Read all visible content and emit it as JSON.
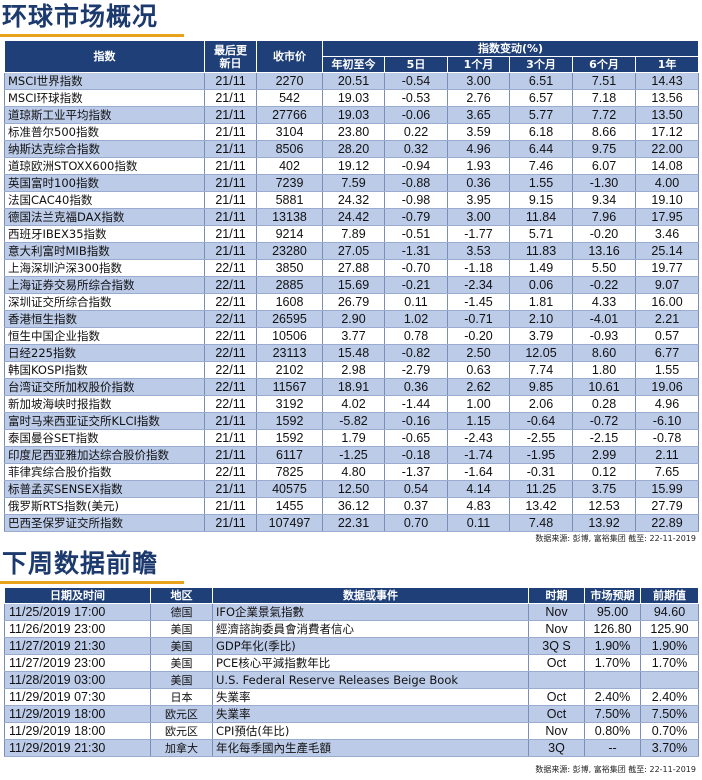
{
  "market_overview": {
    "title": "环球市场概况",
    "headers": {
      "index": "指数",
      "last_update": "最后更新日",
      "close": "收市价",
      "change_group": "指数变动(%)",
      "ytd": "年初至今",
      "d5": "5日",
      "m1": "1个月",
      "m3": "3个月",
      "m6": "6个月",
      "y1": "1年"
    },
    "rows": [
      {
        "name": "MSCI世界指数",
        "date": "21/11",
        "close": "2270",
        "ytd": "20.51",
        "d5": "-0.54",
        "m1": "3.00",
        "m3": "6.51",
        "m6": "7.51",
        "y1": "14.43"
      },
      {
        "name": "MSCI环球指数",
        "date": "21/11",
        "close": "542",
        "ytd": "19.03",
        "d5": "-0.53",
        "m1": "2.76",
        "m3": "6.57",
        "m6": "7.18",
        "y1": "13.56"
      },
      {
        "name": "道琼斯工业平均指数",
        "date": "21/11",
        "close": "27766",
        "ytd": "19.03",
        "d5": "-0.06",
        "m1": "3.65",
        "m3": "5.77",
        "m6": "7.72",
        "y1": "13.50"
      },
      {
        "name": "标准普尔500指数",
        "date": "21/11",
        "close": "3104",
        "ytd": "23.80",
        "d5": "0.22",
        "m1": "3.59",
        "m3": "6.18",
        "m6": "8.66",
        "y1": "17.12"
      },
      {
        "name": "纳斯达克综合指数",
        "date": "21/11",
        "close": "8506",
        "ytd": "28.20",
        "d5": "0.32",
        "m1": "4.96",
        "m3": "6.44",
        "m6": "9.75",
        "y1": "22.00"
      },
      {
        "name": "道琼欧洲STOXX600指数",
        "date": "21/11",
        "close": "402",
        "ytd": "19.12",
        "d5": "-0.94",
        "m1": "1.93",
        "m3": "7.46",
        "m6": "6.07",
        "y1": "14.08"
      },
      {
        "name": "英国富时100指数",
        "date": "21/11",
        "close": "7239",
        "ytd": "7.59",
        "d5": "-0.88",
        "m1": "0.36",
        "m3": "1.55",
        "m6": "-1.30",
        "y1": "4.00"
      },
      {
        "name": "法国CAC40指数",
        "date": "21/11",
        "close": "5881",
        "ytd": "24.32",
        "d5": "-0.98",
        "m1": "3.95",
        "m3": "9.15",
        "m6": "9.34",
        "y1": "19.10"
      },
      {
        "name": "德国法兰克福DAX指数",
        "date": "21/11",
        "close": "13138",
        "ytd": "24.42",
        "d5": "-0.79",
        "m1": "3.00",
        "m3": "11.84",
        "m6": "7.96",
        "y1": "17.95"
      },
      {
        "name": "西班牙IBEX35指数",
        "date": "21/11",
        "close": "9214",
        "ytd": "7.89",
        "d5": "-0.51",
        "m1": "-1.77",
        "m3": "5.71",
        "m6": "-0.20",
        "y1": "3.46"
      },
      {
        "name": "意大利富时MIB指数",
        "date": "21/11",
        "close": "23280",
        "ytd": "27.05",
        "d5": "-1.31",
        "m1": "3.53",
        "m3": "11.83",
        "m6": "13.16",
        "y1": "25.14"
      },
      {
        "name": "上海深圳沪深300指数",
        "date": "22/11",
        "close": "3850",
        "ytd": "27.88",
        "d5": "-0.70",
        "m1": "-1.18",
        "m3": "1.49",
        "m6": "5.50",
        "y1": "19.77"
      },
      {
        "name": "上海证券交易所综合指数",
        "date": "22/11",
        "close": "2885",
        "ytd": "15.69",
        "d5": "-0.21",
        "m1": "-2.34",
        "m3": "0.06",
        "m6": "-0.22",
        "y1": "9.07"
      },
      {
        "name": "深圳证交所综合指数",
        "date": "22/11",
        "close": "1608",
        "ytd": "26.79",
        "d5": "0.11",
        "m1": "-1.45",
        "m3": "1.81",
        "m6": "4.33",
        "y1": "16.00"
      },
      {
        "name": "香港恒生指数",
        "date": "22/11",
        "close": "26595",
        "ytd": "2.90",
        "d5": "1.02",
        "m1": "-0.71",
        "m3": "2.10",
        "m6": "-4.01",
        "y1": "2.21"
      },
      {
        "name": "恒生中国企业指数",
        "date": "22/11",
        "close": "10506",
        "ytd": "3.77",
        "d5": "0.78",
        "m1": "-0.20",
        "m3": "3.79",
        "m6": "-0.93",
        "y1": "0.57"
      },
      {
        "name": "日经225指数",
        "date": "22/11",
        "close": "23113",
        "ytd": "15.48",
        "d5": "-0.82",
        "m1": "2.50",
        "m3": "12.05",
        "m6": "8.60",
        "y1": "6.77"
      },
      {
        "name": "韩国KOSPI指数",
        "date": "22/11",
        "close": "2102",
        "ytd": "2.98",
        "d5": "-2.79",
        "m1": "0.63",
        "m3": "7.74",
        "m6": "1.80",
        "y1": "1.55"
      },
      {
        "name": "台湾证交所加权股价指数",
        "date": "22/11",
        "close": "11567",
        "ytd": "18.91",
        "d5": "0.36",
        "m1": "2.62",
        "m3": "9.85",
        "m6": "10.61",
        "y1": "19.06"
      },
      {
        "name": "新加坡海峡时报指数",
        "date": "22/11",
        "close": "3192",
        "ytd": "4.02",
        "d5": "-1.44",
        "m1": "1.00",
        "m3": "2.06",
        "m6": "0.28",
        "y1": "4.96"
      },
      {
        "name": "富时马来西亚证交所KLCI指数",
        "date": "21/11",
        "close": "1592",
        "ytd": "-5.82",
        "d5": "-0.16",
        "m1": "1.15",
        "m3": "-0.64",
        "m6": "-0.72",
        "y1": "-6.10"
      },
      {
        "name": "泰国曼谷SET指数",
        "date": "21/11",
        "close": "1592",
        "ytd": "1.79",
        "d5": "-0.65",
        "m1": "-2.43",
        "m3": "-2.55",
        "m6": "-2.15",
        "y1": "-0.78"
      },
      {
        "name": "印度尼西亚雅加达综合股价指数",
        "date": "21/11",
        "close": "6117",
        "ytd": "-1.25",
        "d5": "-0.18",
        "m1": "-1.74",
        "m3": "-1.95",
        "m6": "2.99",
        "y1": "2.11"
      },
      {
        "name": "菲律宾综合股价指数",
        "date": "22/11",
        "close": "7825",
        "ytd": "4.80",
        "d5": "-1.37",
        "m1": "-1.64",
        "m3": "-0.31",
        "m6": "0.12",
        "y1": "7.65"
      },
      {
        "name": "标普孟买SENSEX指数",
        "date": "21/11",
        "close": "40575",
        "ytd": "12.50",
        "d5": "0.54",
        "m1": "4.14",
        "m3": "11.25",
        "m6": "3.75",
        "y1": "15.99"
      },
      {
        "name": "俄罗斯RTS指数(美元)",
        "date": "21/11",
        "close": "1455",
        "ytd": "36.12",
        "d5": "0.37",
        "m1": "4.83",
        "m3": "13.42",
        "m6": "12.53",
        "y1": "27.79"
      },
      {
        "name": "巴西圣保罗证交所指数",
        "date": "21/11",
        "close": "107497",
        "ytd": "22.31",
        "d5": "0.70",
        "m1": "0.11",
        "m3": "7.48",
        "m6": "13.92",
        "y1": "22.89"
      }
    ],
    "source": "数据来源: 彭博, 富裕集团 截至: 22-11-2019"
  },
  "data_preview": {
    "title": "下周数据前瞻",
    "headers": {
      "datetime": "日期及时间",
      "region": "地区",
      "event": "数据或事件",
      "period": "时期",
      "forecast": "市场预期",
      "previous": "前期值"
    },
    "rows": [
      {
        "datetime": "11/25/2019 17:00",
        "region": "德国",
        "event": "IFO企業景氣指數",
        "period": "Nov",
        "forecast": "95.00",
        "previous": "94.60"
      },
      {
        "datetime": "11/26/2019 23:00",
        "region": "美国",
        "event": "經濟諮詢委員會消費者信心",
        "period": "Nov",
        "forecast": "126.80",
        "previous": "125.90"
      },
      {
        "datetime": "11/27/2019 21:30",
        "region": "美国",
        "event": "GDP年化(季比)",
        "period": "3Q S",
        "forecast": "1.90%",
        "previous": "1.90%"
      },
      {
        "datetime": "11/27/2019 23:00",
        "region": "美国",
        "event": "PCE核心平減指數年比",
        "period": "Oct",
        "forecast": "1.70%",
        "previous": "1.70%"
      },
      {
        "datetime": "11/28/2019 03:00",
        "region": "美国",
        "event": "U.S. Federal Reserve Releases Beige Book",
        "period": "",
        "forecast": "",
        "previous": ""
      },
      {
        "datetime": "11/29/2019 07:30",
        "region": "日本",
        "event": "失業率",
        "period": "Oct",
        "forecast": "2.40%",
        "previous": "2.40%"
      },
      {
        "datetime": "11/29/2019 18:00",
        "region": "欧元区",
        "event": "失業率",
        "period": "Oct",
        "forecast": "7.50%",
        "previous": "7.50%"
      },
      {
        "datetime": "11/29/2019 18:00",
        "region": "欧元区",
        "event": "CPI預估(年比)",
        "period": "Nov",
        "forecast": "0.80%",
        "previous": "0.70%"
      },
      {
        "datetime": "11/29/2019 21:30",
        "region": "加拿大",
        "event": "年化每季國內生產毛額",
        "period": "3Q",
        "forecast": "--",
        "previous": "3.70%"
      }
    ],
    "source": "数据来源: 彭博, 富裕集团 截至: 22-11-2019"
  }
}
